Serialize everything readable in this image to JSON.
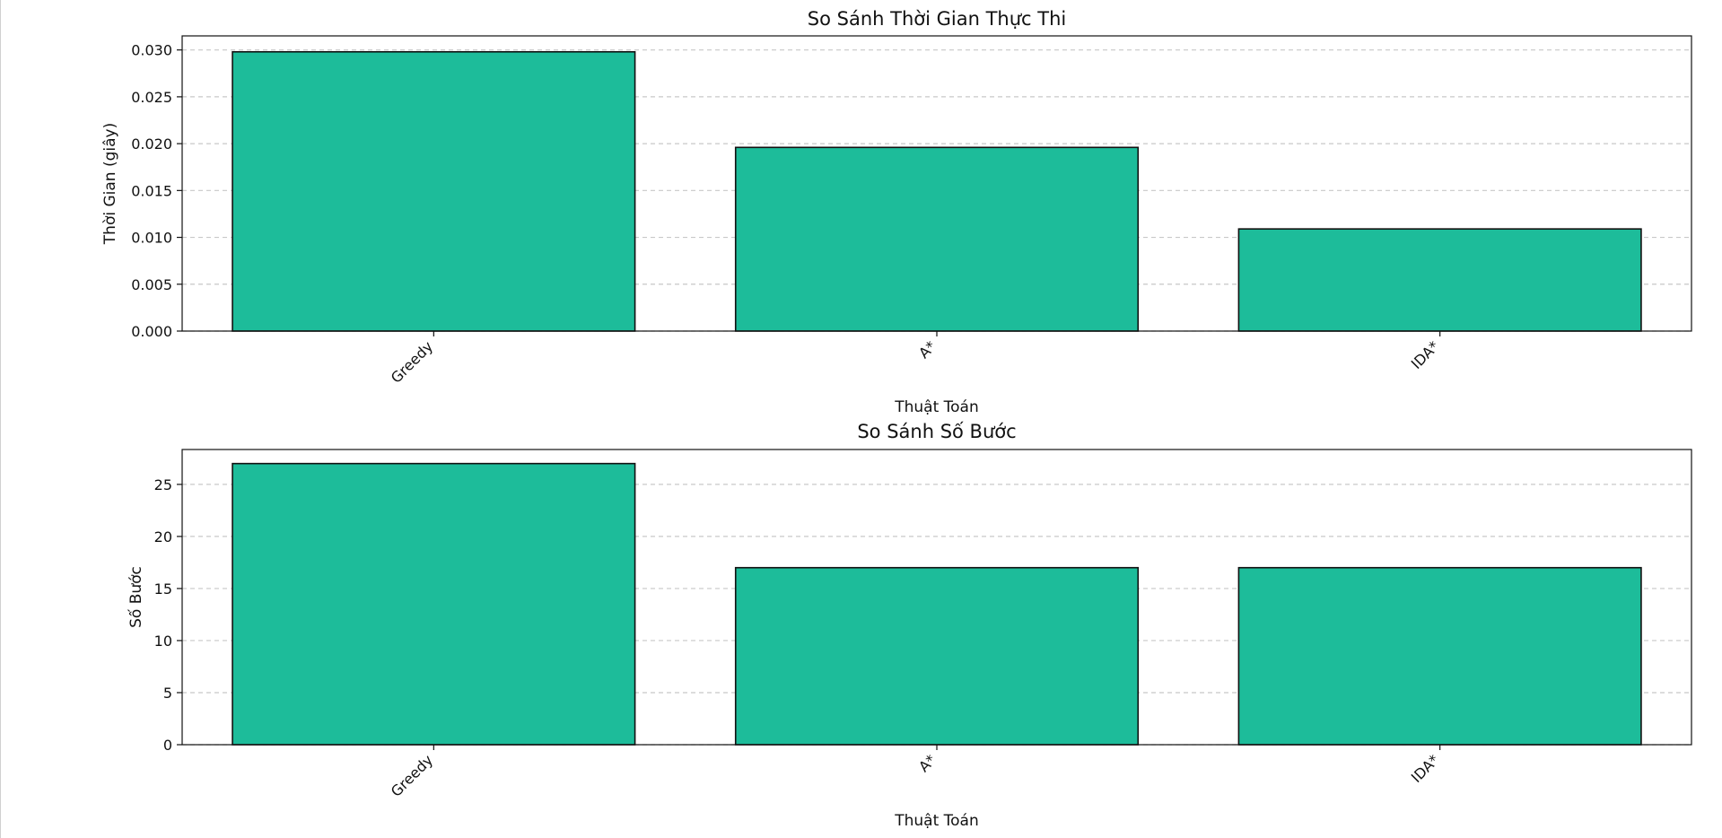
{
  "colors": {
    "bar_fill": "#1DBC9A",
    "bar_edge": "#111111",
    "grid": "#c8c8c8",
    "axis": "#111111"
  },
  "chart_data": [
    {
      "type": "bar",
      "title": "So Sánh Thời Gian Thực Thi",
      "xlabel": "Thuật Toán",
      "ylabel": "Thời Gian (giây)",
      "categories": [
        "Greedy",
        "A*",
        "IDA*"
      ],
      "values": [
        0.0298,
        0.0196,
        0.0109
      ],
      "ylim": [
        0,
        0.0315
      ],
      "yticks": [
        0.0,
        0.005,
        0.01,
        0.015,
        0.02,
        0.025,
        0.03
      ],
      "ytick_labels": [
        "0.000",
        "0.005",
        "0.010",
        "0.015",
        "0.020",
        "0.025",
        "0.030"
      ],
      "grid": "y-dashed",
      "legend": "none"
    },
    {
      "type": "bar",
      "title": "So Sánh Số Bước",
      "xlabel": "Thuật Toán",
      "ylabel": "Số Bước",
      "categories": [
        "Greedy",
        "A*",
        "IDA*"
      ],
      "values": [
        27,
        17,
        17
      ],
      "ylim": [
        0,
        28.35
      ],
      "yticks": [
        0,
        5,
        10,
        15,
        20,
        25
      ],
      "ytick_labels": [
        "0",
        "5",
        "10",
        "15",
        "20",
        "25"
      ],
      "grid": "y-dashed",
      "legend": "none"
    }
  ]
}
